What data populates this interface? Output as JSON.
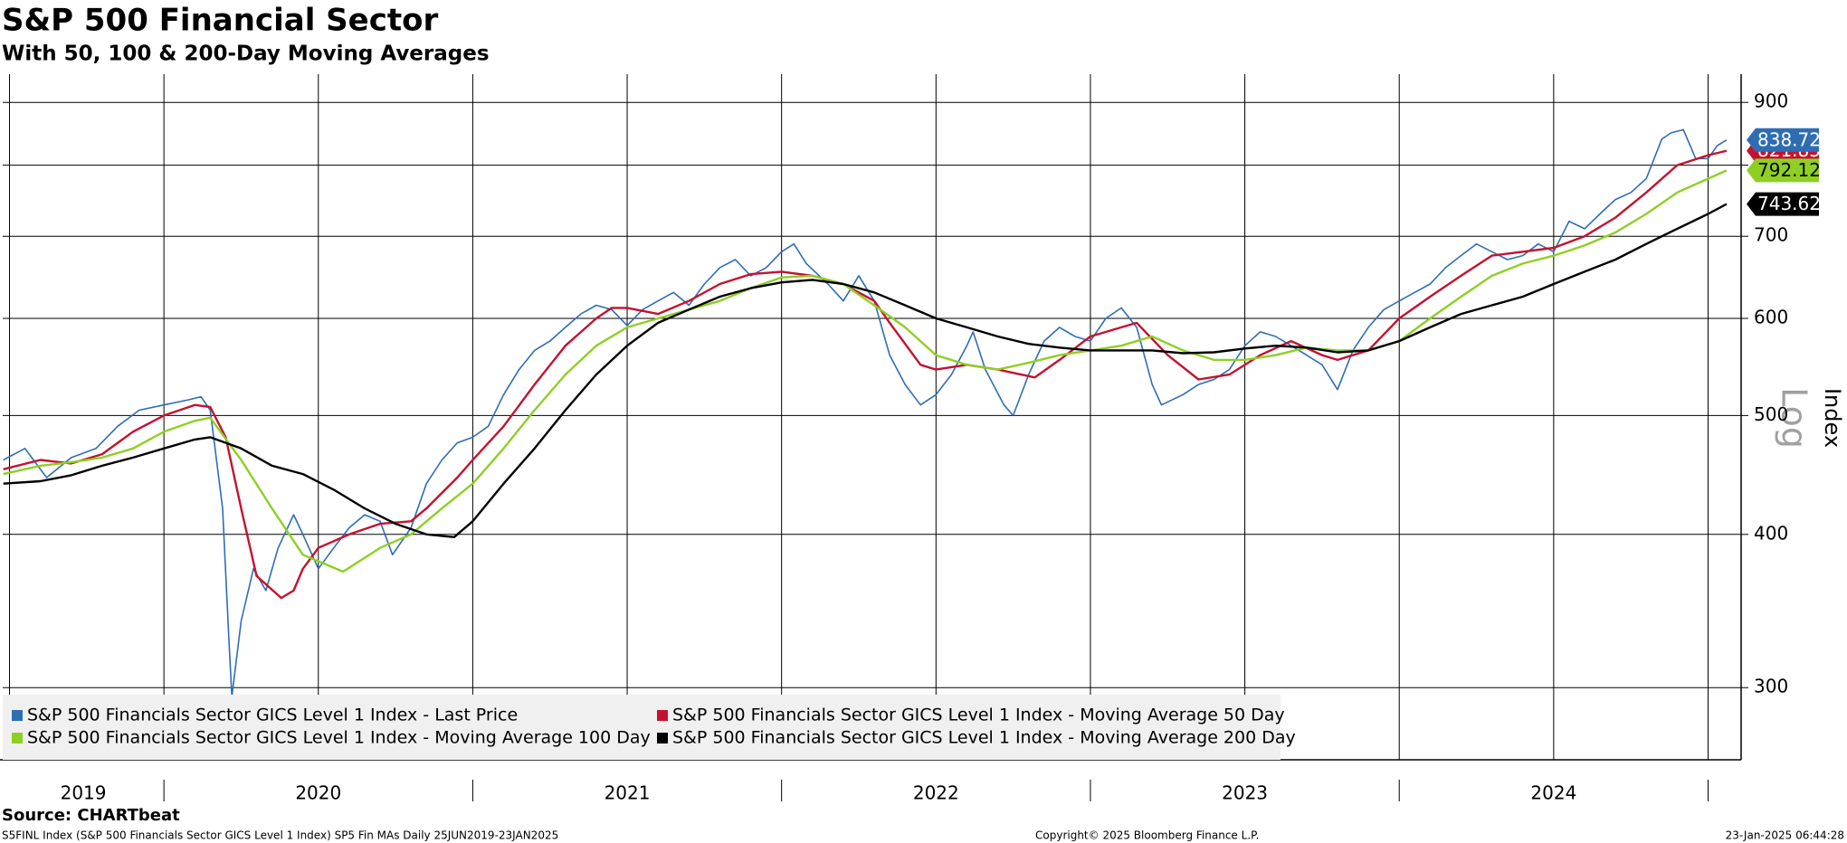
{
  "chart_data": {
    "type": "line",
    "title": "S&P 500 Financial Sector",
    "subtitle": "With 50, 100 & 200-Day Moving Averages",
    "y_axis_label": "Index",
    "scale_label": "Log",
    "log_scale": true,
    "grid": true,
    "legend_position": "bottom-left",
    "xlim": [
      2019.478,
      2025.107
    ],
    "xticks": [
      2019.5,
      2020,
      2020.5,
      2021,
      2021.5,
      2022,
      2022.5,
      2023,
      2023.5,
      2024,
      2024.5,
      2025
    ],
    "x_categories": [
      "2019",
      "2020",
      "2021",
      "2022",
      "2023",
      "2024"
    ],
    "ylim": [
      262,
      949
    ],
    "yticks": [
      300,
      400,
      500,
      600,
      700,
      800,
      900
    ],
    "series": [
      {
        "name": "S&P 500 Financials Sector GICS Level 1 Index - Last Price",
        "color": "#2f6db3",
        "last_value": 838.72,
        "x": [
          2019.48,
          2019.55,
          2019.62,
          2019.7,
          2019.78,
          2019.85,
          2019.92,
          2020.0,
          2020.08,
          2020.12,
          2020.15,
          2020.19,
          2020.21,
          2020.22,
          2020.25,
          2020.29,
          2020.33,
          2020.37,
          2020.42,
          2020.45,
          2020.5,
          2020.55,
          2020.6,
          2020.65,
          2020.7,
          2020.74,
          2020.8,
          2020.85,
          2020.9,
          2020.95,
          2021.0,
          2021.05,
          2021.1,
          2021.15,
          2021.2,
          2021.25,
          2021.3,
          2021.35,
          2021.4,
          2021.45,
          2021.5,
          2021.55,
          2021.6,
          2021.65,
          2021.7,
          2021.75,
          2021.8,
          2021.85,
          2021.9,
          2021.95,
          2022.0,
          2022.04,
          2022.08,
          2022.15,
          2022.2,
          2022.25,
          2022.3,
          2022.35,
          2022.4,
          2022.45,
          2022.5,
          2022.55,
          2022.6,
          2022.62,
          2022.66,
          2022.72,
          2022.75,
          2022.8,
          2022.85,
          2022.9,
          2022.95,
          2023.0,
          2023.05,
          2023.1,
          2023.15,
          2023.2,
          2023.23,
          2023.3,
          2023.35,
          2023.4,
          2023.45,
          2023.5,
          2023.55,
          2023.6,
          2023.65,
          2023.7,
          2023.75,
          2023.8,
          2023.85,
          2023.9,
          2023.95,
          2024.0,
          2024.05,
          2024.1,
          2024.15,
          2024.2,
          2024.25,
          2024.3,
          2024.35,
          2024.4,
          2024.45,
          2024.5,
          2024.55,
          2024.6,
          2024.65,
          2024.7,
          2024.75,
          2024.8,
          2024.85,
          2024.88,
          2024.92,
          2024.96,
          2025.0,
          2025.03,
          2025.06
        ],
        "values": [
          460,
          470,
          445,
          462,
          470,
          490,
          505,
          510,
          515,
          518,
          505,
          420,
          330,
          295,
          340,
          375,
          360,
          390,
          415,
          400,
          375,
          390,
          405,
          415,
          410,
          385,
          405,
          440,
          460,
          475,
          480,
          490,
          520,
          545,
          565,
          575,
          590,
          605,
          615,
          610,
          592,
          610,
          620,
          630,
          615,
          640,
          660,
          670,
          650,
          660,
          680,
          690,
          665,
          640,
          620,
          650,
          620,
          560,
          530,
          510,
          520,
          540,
          570,
          585,
          545,
          510,
          500,
          540,
          575,
          590,
          580,
          575,
          600,
          612,
          590,
          530,
          510,
          520,
          530,
          535,
          545,
          570,
          585,
          580,
          570,
          560,
          550,
          525,
          565,
          590,
          610,
          620,
          630,
          640,
          660,
          675,
          690,
          680,
          670,
          675,
          690,
          680,
          720,
          710,
          730,
          750,
          760,
          780,
          840,
          850,
          855,
          810,
          810,
          830,
          838.72
        ]
      },
      {
        "name": "S&P 500 Financials Sector GICS Level 1 Index - Moving Average 50 Day",
        "color": "#c4122f",
        "last_value": 821.85,
        "x": [
          2019.48,
          2019.6,
          2019.7,
          2019.8,
          2019.9,
          2020.0,
          2020.1,
          2020.15,
          2020.2,
          2020.25,
          2020.3,
          2020.38,
          2020.42,
          2020.45,
          2020.5,
          2020.6,
          2020.7,
          2020.8,
          2020.85,
          2020.95,
          2021.0,
          2021.1,
          2021.2,
          2021.3,
          2021.4,
          2021.45,
          2021.5,
          2021.6,
          2021.7,
          2021.8,
          2021.9,
          2022.0,
          2022.1,
          2022.2,
          2022.3,
          2022.35,
          2022.45,
          2022.5,
          2022.6,
          2022.7,
          2022.82,
          2022.9,
          2023.0,
          2023.1,
          2023.15,
          2023.25,
          2023.35,
          2023.45,
          2023.55,
          2023.65,
          2023.75,
          2023.8,
          2023.9,
          2024.0,
          2024.1,
          2024.2,
          2024.3,
          2024.4,
          2024.5,
          2024.6,
          2024.7,
          2024.8,
          2024.9,
          2025.0,
          2025.06
        ],
        "values": [
          452,
          460,
          457,
          465,
          485,
          500,
          510,
          508,
          480,
          420,
          370,
          355,
          360,
          375,
          390,
          400,
          408,
          410,
          420,
          445,
          460,
          490,
          530,
          570,
          600,
          612,
          612,
          605,
          620,
          640,
          652,
          655,
          650,
          640,
          620,
          595,
          550,
          545,
          550,
          545,
          537,
          555,
          580,
          590,
          595,
          560,
          535,
          540,
          560,
          575,
          560,
          555,
          565,
          600,
          625,
          650,
          675,
          680,
          685,
          700,
          725,
          760,
          800,
          815,
          821.85
        ]
      },
      {
        "name": "S&P 500 Financials Sector GICS Level 1 Index - Moving Average 100 Day",
        "color": "#8fcf24",
        "last_value": 792.12,
        "x": [
          2019.48,
          2019.6,
          2019.7,
          2019.8,
          2019.9,
          2020.0,
          2020.1,
          2020.15,
          2020.25,
          2020.35,
          2020.45,
          2020.58,
          2020.7,
          2020.8,
          2020.9,
          2021.0,
          2021.1,
          2021.2,
          2021.3,
          2021.4,
          2021.5,
          2021.6,
          2021.7,
          2021.8,
          2021.9,
          2022.0,
          2022.1,
          2022.2,
          2022.3,
          2022.4,
          2022.5,
          2022.6,
          2022.7,
          2022.8,
          2022.9,
          2023.0,
          2023.1,
          2023.2,
          2023.3,
          2023.4,
          2023.5,
          2023.6,
          2023.7,
          2023.8,
          2023.9,
          2024.0,
          2024.1,
          2024.2,
          2024.3,
          2024.4,
          2024.5,
          2024.6,
          2024.7,
          2024.8,
          2024.9,
          2025.0,
          2025.06
        ],
        "values": [
          448,
          455,
          458,
          462,
          470,
          485,
          495,
          498,
          460,
          420,
          385,
          373,
          390,
          400,
          420,
          440,
          470,
          505,
          540,
          570,
          590,
          600,
          610,
          620,
          635,
          648,
          650,
          640,
          615,
          590,
          560,
          550,
          545,
          552,
          560,
          565,
          570,
          580,
          565,
          555,
          555,
          560,
          568,
          565,
          565,
          575,
          600,
          625,
          650,
          665,
          675,
          688,
          705,
          730,
          760,
          780,
          792.12
        ]
      },
      {
        "name": "S&P 500 Financials Sector GICS Level 1 Index - Moving Average 200 Day",
        "color": "#000000",
        "last_value": 743.62,
        "x": [
          2019.48,
          2019.6,
          2019.7,
          2019.8,
          2019.9,
          2020.0,
          2020.1,
          2020.15,
          2020.25,
          2020.35,
          2020.45,
          2020.55,
          2020.65,
          2020.75,
          2020.85,
          2020.94,
          2021.0,
          2021.1,
          2021.2,
          2021.3,
          2021.4,
          2021.5,
          2021.6,
          2021.7,
          2021.8,
          2021.9,
          2022.0,
          2022.1,
          2022.2,
          2022.3,
          2022.4,
          2022.5,
          2022.6,
          2022.7,
          2022.8,
          2022.9,
          2023.0,
          2023.1,
          2023.2,
          2023.3,
          2023.4,
          2023.5,
          2023.6,
          2023.7,
          2023.8,
          2023.9,
          2024.0,
          2024.1,
          2024.2,
          2024.3,
          2024.4,
          2024.5,
          2024.6,
          2024.7,
          2024.8,
          2024.9,
          2025.0,
          2025.06
        ],
        "values": [
          440,
          442,
          447,
          455,
          462,
          470,
          478,
          480,
          470,
          455,
          448,
          435,
          420,
          408,
          400,
          398,
          410,
          440,
          470,
          505,
          540,
          570,
          595,
          610,
          625,
          635,
          642,
          645,
          640,
          630,
          615,
          600,
          590,
          580,
          572,
          568,
          565,
          565,
          565,
          562,
          563,
          567,
          570,
          568,
          563,
          565,
          575,
          590,
          605,
          615,
          625,
          640,
          655,
          670,
          690,
          710,
          730,
          743.62
        ]
      }
    ],
    "source": "Source: CHARTbeat",
    "footer": {
      "left": "S5FINL Index (S&P 500 Financials Sector GICS Level 1 Index) SP5 Fin MAs  Daily 25JUN2019-23JAN2025",
      "center": "Copyright© 2025 Bloomberg Finance L.P.",
      "right": "23-Jan-2025 06:44:28"
    }
  }
}
